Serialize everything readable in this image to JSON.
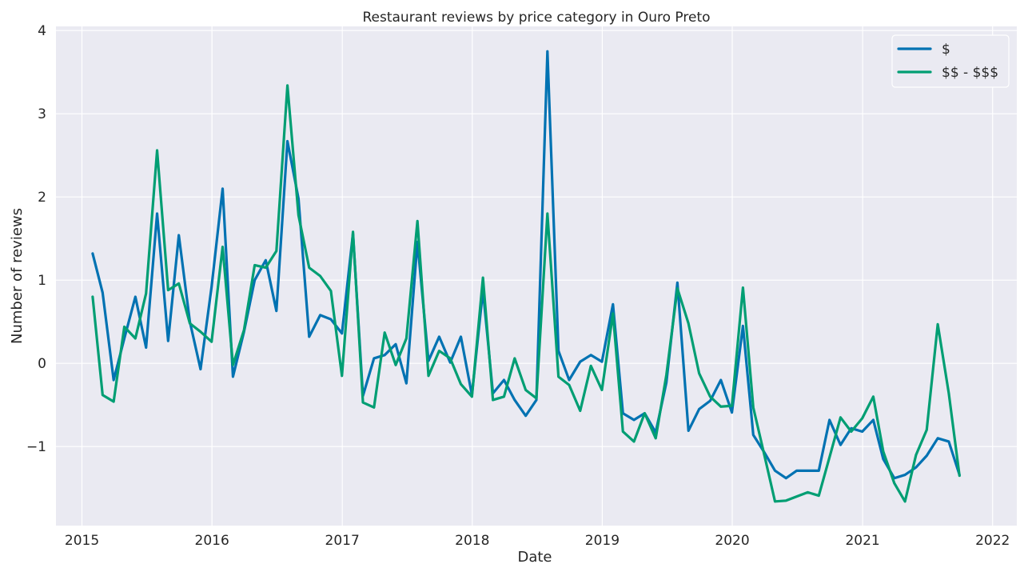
{
  "chart_data": {
    "type": "line",
    "title": "Restaurant reviews by price category in Ouro Preto",
    "xlabel": "Date",
    "ylabel": "Number of reviews",
    "xlim": [
      "2014-10-20",
      "2022-03-10"
    ],
    "ylim": [
      -1.95,
      4.05
    ],
    "x_ticks": [
      "2015-01-01",
      "2016-01-01",
      "2017-01-01",
      "2018-01-01",
      "2019-01-01",
      "2020-01-01",
      "2021-01-01",
      "2022-01-01"
    ],
    "x_tick_labels": [
      "2015",
      "2016",
      "2017",
      "2018",
      "2019",
      "2020",
      "2021",
      "2022"
    ],
    "y_ticks": [
      -1,
      0,
      1,
      2,
      3,
      4
    ],
    "y_tick_labels": [
      "−1",
      "0",
      "1",
      "2",
      "3",
      "4"
    ],
    "grid": true,
    "legend_position": "top-right",
    "x": [
      "2015-01-31",
      "2015-02-28",
      "2015-03-31",
      "2015-04-30",
      "2015-05-31",
      "2015-06-30",
      "2015-07-31",
      "2015-08-31",
      "2015-09-30",
      "2015-10-31",
      "2015-11-30",
      "2015-12-31",
      "2016-01-31",
      "2016-02-29",
      "2016-03-31",
      "2016-04-30",
      "2016-05-31",
      "2016-06-30",
      "2016-07-31",
      "2016-08-31",
      "2016-09-30",
      "2016-10-31",
      "2016-11-30",
      "2016-12-31",
      "2017-01-31",
      "2017-02-28",
      "2017-03-31",
      "2017-04-30",
      "2017-05-31",
      "2017-06-30",
      "2017-07-31",
      "2017-08-31",
      "2017-09-30",
      "2017-10-31",
      "2017-11-30",
      "2017-12-31",
      "2018-01-31",
      "2018-02-28",
      "2018-03-31",
      "2018-04-30",
      "2018-05-31",
      "2018-06-30",
      "2018-07-31",
      "2018-08-31",
      "2018-09-30",
      "2018-10-31",
      "2018-11-30",
      "2018-12-31",
      "2019-01-31",
      "2019-02-28",
      "2019-03-31",
      "2019-04-30",
      "2019-05-31",
      "2019-06-30",
      "2019-07-31",
      "2019-08-31",
      "2019-09-30",
      "2019-10-31",
      "2019-11-30",
      "2019-12-31",
      "2020-01-31",
      "2020-02-29",
      "2020-03-31",
      "2020-04-30",
      "2020-05-31",
      "2020-06-30",
      "2020-07-31",
      "2020-08-31",
      "2020-09-30",
      "2020-10-31",
      "2020-11-30",
      "2020-12-31",
      "2021-01-31",
      "2021-02-28",
      "2021-03-31",
      "2021-04-30",
      "2021-05-31",
      "2021-06-30",
      "2021-07-31",
      "2021-08-31",
      "2021-09-30"
    ],
    "series": [
      {
        "name": "$",
        "color": "#0072b2",
        "values": [
          1.32,
          0.85,
          -0.2,
          0.3,
          0.8,
          0.19,
          1.8,
          0.27,
          1.54,
          0.5,
          -0.07,
          0.92,
          2.1,
          -0.16,
          0.38,
          1.0,
          1.24,
          0.63,
          2.67,
          1.98,
          0.32,
          0.58,
          0.53,
          0.36,
          1.56,
          -0.39,
          0.06,
          0.1,
          0.23,
          -0.24,
          1.46,
          0.03,
          0.32,
          0.01,
          0.32,
          -0.38,
          0.88,
          -0.36,
          -0.2,
          -0.44,
          -0.63,
          -0.44,
          3.75,
          0.15,
          -0.2,
          0.02,
          0.1,
          0.02,
          0.71,
          -0.6,
          -0.68,
          -0.6,
          -0.83,
          -0.23,
          0.97,
          -0.81,
          -0.55,
          -0.45,
          -0.2,
          -0.59,
          0.45,
          -0.86,
          -1.07,
          -1.29,
          -1.38,
          -1.29,
          -1.29,
          -1.29,
          -0.68,
          -0.98,
          -0.78,
          -0.82,
          -0.68,
          -1.15,
          -1.38,
          -1.34,
          -1.25,
          -1.11,
          -0.9,
          -0.94,
          -1.34
        ]
      },
      {
        "name": "$$ - $$$",
        "color": "#009e73",
        "values": [
          0.8,
          -0.38,
          -0.46,
          0.44,
          0.3,
          0.84,
          2.56,
          0.88,
          0.96,
          0.48,
          0.38,
          0.26,
          1.4,
          -0.02,
          0.4,
          1.18,
          1.15,
          1.35,
          3.34,
          1.78,
          1.15,
          1.05,
          0.87,
          -0.15,
          1.58,
          -0.47,
          -0.53,
          0.37,
          -0.02,
          0.3,
          1.71,
          -0.15,
          0.15,
          0.06,
          -0.25,
          -0.4,
          1.03,
          -0.44,
          -0.4,
          0.06,
          -0.32,
          -0.42,
          1.8,
          -0.16,
          -0.26,
          -0.57,
          -0.03,
          -0.32,
          0.6,
          -0.82,
          -0.94,
          -0.6,
          -0.9,
          -0.14,
          0.9,
          0.48,
          -0.12,
          -0.4,
          -0.52,
          -0.51,
          0.91,
          -0.53,
          -1.1,
          -1.66,
          -1.65,
          -1.6,
          -1.55,
          -1.59,
          -1.13,
          -0.65,
          -0.82,
          -0.66,
          -0.4,
          -1.06,
          -1.44,
          -1.66,
          -1.1,
          -0.8,
          0.47,
          -0.36,
          -1.35
        ]
      }
    ]
  }
}
